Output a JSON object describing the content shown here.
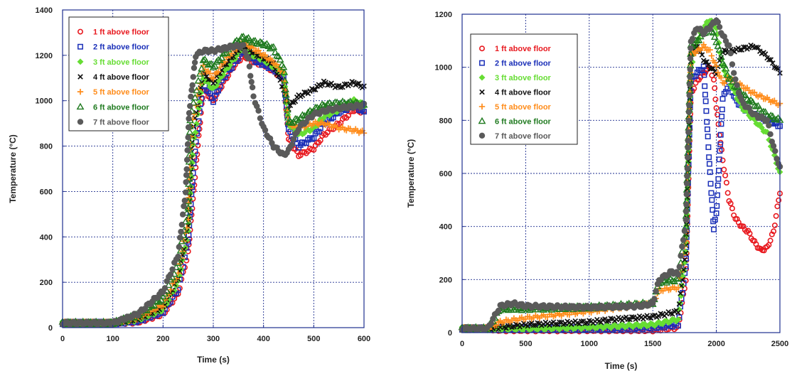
{
  "chart_data": [
    {
      "type": "scatter",
      "title": "",
      "xlabel": "Time (s)",
      "ylabel": "Temperature (°C)",
      "xlim": [
        0,
        600
      ],
      "ylim": [
        0,
        1400
      ],
      "xticks": [
        0,
        100,
        200,
        300,
        400,
        500,
        600
      ],
      "yticks": [
        0,
        200,
        400,
        600,
        800,
        1000,
        1200,
        1400
      ],
      "grid": true,
      "legend_position": "top-left",
      "series": [
        {
          "name": "1 ft above floor",
          "color": "#e8191f",
          "marker": "circle-open",
          "x": [
            0,
            100,
            150,
            200,
            230,
            250,
            265,
            280,
            300,
            320,
            340,
            360,
            380,
            400,
            420,
            440,
            450,
            470,
            500,
            520,
            550,
            580,
            600
          ],
          "y": [
            20,
            20,
            25,
            60,
            150,
            330,
            700,
            1050,
            1000,
            1080,
            1150,
            1200,
            1170,
            1160,
            1130,
            1100,
            830,
            760,
            790,
            850,
            900,
            960,
            950
          ]
        },
        {
          "name": "2 ft above floor",
          "color": "#1a2fb8",
          "marker": "square-open",
          "x": [
            0,
            100,
            150,
            200,
            230,
            250,
            262,
            280,
            300,
            320,
            340,
            360,
            380,
            400,
            420,
            440,
            450,
            470,
            500,
            520,
            550,
            580,
            600
          ],
          "y": [
            20,
            20,
            30,
            70,
            170,
            380,
            750,
            1080,
            1000,
            1100,
            1160,
            1220,
            1180,
            1160,
            1140,
            1100,
            870,
            800,
            840,
            900,
            950,
            980,
            950
          ]
        },
        {
          "name": "3 ft above floor",
          "color": "#66dd33",
          "marker": "diamond",
          "x": [
            0,
            100,
            150,
            200,
            230,
            250,
            260,
            280,
            300,
            320,
            340,
            360,
            380,
            400,
            420,
            440,
            450,
            470,
            500,
            520,
            550,
            580,
            600
          ],
          "y": [
            20,
            20,
            35,
            80,
            200,
            420,
            800,
            1100,
            1050,
            1120,
            1180,
            1240,
            1200,
            1180,
            1150,
            1120,
            900,
            850,
            880,
            930,
            960,
            1000,
            980
          ]
        },
        {
          "name": "4 ft above floor",
          "color": "#111111",
          "marker": "x",
          "x": [
            0,
            100,
            150,
            200,
            230,
            250,
            258,
            280,
            300,
            320,
            340,
            360,
            380,
            400,
            420,
            440,
            450,
            470,
            500,
            520,
            550,
            580,
            600
          ],
          "y": [
            20,
            20,
            40,
            90,
            220,
            450,
            850,
            1120,
            1080,
            1150,
            1200,
            1250,
            1210,
            1190,
            1160,
            1050,
            970,
            1020,
            1050,
            1080,
            1060,
            1080,
            1060
          ]
        },
        {
          "name": "5 ft above floor",
          "color": "#ff8c1a",
          "marker": "plus",
          "x": [
            0,
            100,
            150,
            200,
            230,
            250,
            256,
            280,
            300,
            320,
            340,
            360,
            380,
            400,
            420,
            440,
            450,
            470,
            500,
            520,
            550,
            580,
            600
          ],
          "y": [
            20,
            20,
            45,
            100,
            240,
            480,
            880,
            1150,
            1100,
            1170,
            1220,
            1260,
            1230,
            1200,
            1170,
            1120,
            900,
            880,
            900,
            900,
            880,
            870,
            860
          ]
        },
        {
          "name": "6 ft above floor",
          "color": "#1f7a1f",
          "marker": "triangle-open",
          "x": [
            0,
            100,
            150,
            200,
            230,
            250,
            254,
            280,
            300,
            320,
            340,
            360,
            380,
            400,
            420,
            440,
            450,
            470,
            500,
            520,
            550,
            580,
            600
          ],
          "y": [
            20,
            20,
            55,
            130,
            280,
            530,
            920,
            1180,
            1150,
            1200,
            1250,
            1280,
            1260,
            1250,
            1230,
            1150,
            900,
            920,
            960,
            980,
            990,
            990,
            980
          ]
        },
        {
          "name": "7 ft above floor",
          "color": "#5a5a5a",
          "marker": "circle-filled",
          "x": [
            0,
            100,
            150,
            200,
            230,
            245,
            252,
            265,
            280,
            300,
            320,
            340,
            360,
            370,
            380,
            400,
            420,
            440,
            450,
            470,
            500,
            530,
            560,
            600
          ],
          "y": [
            20,
            20,
            60,
            160,
            320,
            600,
            950,
            1200,
            1220,
            1220,
            1230,
            1240,
            1240,
            1180,
            1020,
            880,
            800,
            760,
            780,
            880,
            940,
            960,
            970,
            980
          ]
        }
      ]
    },
    {
      "type": "scatter",
      "title": "",
      "xlabel": "Time (s)",
      "ylabel": "Temperature (°C)",
      "xlim": [
        0,
        2500
      ],
      "ylim": [
        0,
        1200
      ],
      "xticks": [
        0,
        500,
        1000,
        1500,
        2000,
        2500
      ],
      "yticks": [
        0,
        200,
        400,
        600,
        800,
        1000,
        1200
      ],
      "grid": true,
      "legend_position": "top-left",
      "series": [
        {
          "name": "1 ft above floor",
          "color": "#e8191f",
          "marker": "circle-open",
          "x": [
            0,
            200,
            300,
            500,
            1000,
            1500,
            1700,
            1760,
            1800,
            1850,
            1900,
            1950,
            1980,
            2000,
            2050,
            2100,
            2150,
            2200,
            2250,
            2300,
            2350,
            2400,
            2450,
            2500
          ],
          "y": [
            15,
            15,
            10,
            10,
            10,
            10,
            20,
            200,
            900,
            950,
            980,
            1000,
            950,
            850,
            650,
            500,
            430,
            400,
            380,
            340,
            310,
            320,
            380,
            530
          ]
        },
        {
          "name": "2 ft above floor",
          "color": "#1a2fb8",
          "marker": "square-open",
          "x": [
            0,
            200,
            300,
            500,
            1000,
            1500,
            1700,
            1760,
            1800,
            1850,
            1900,
            1950,
            1980,
            2000,
            2050,
            2100,
            2150,
            2200,
            2300,
            2400,
            2500
          ],
          "y": [
            15,
            15,
            15,
            15,
            15,
            20,
            30,
            250,
            950,
            980,
            1000,
            600,
            390,
            450,
            880,
            940,
            880,
            850,
            820,
            800,
            780
          ]
        },
        {
          "name": "3 ft above floor",
          "color": "#66dd33",
          "marker": "diamond",
          "x": [
            0,
            200,
            300,
            500,
            1000,
            1500,
            1700,
            1760,
            1800,
            1850,
            1900,
            1950,
            2000,
            2050,
            2100,
            2150,
            2200,
            2300,
            2400,
            2500
          ],
          "y": [
            15,
            15,
            15,
            15,
            20,
            30,
            50,
            300,
            1000,
            1100,
            1150,
            1180,
            1150,
            1000,
            950,
            900,
            850,
            800,
            750,
            600
          ]
        },
        {
          "name": "4 ft above floor",
          "color": "#111111",
          "marker": "x",
          "x": [
            0,
            200,
            300,
            500,
            1000,
            1200,
            1500,
            1700,
            1760,
            1800,
            1850,
            1900,
            1950,
            2000,
            2050,
            2100,
            2200,
            2300,
            2400,
            2500
          ],
          "y": [
            15,
            15,
            20,
            30,
            40,
            50,
            60,
            80,
            300,
            1050,
            1080,
            1030,
            1000,
            980,
            1060,
            1060,
            1070,
            1080,
            1040,
            980
          ]
        },
        {
          "name": "5 ft above floor",
          "color": "#ff8c1a",
          "marker": "plus",
          "x": [
            0,
            200,
            300,
            500,
            1000,
            1500,
            1550,
            1700,
            1760,
            1800,
            1850,
            1900,
            1950,
            2000,
            2050,
            2100,
            2200,
            2300,
            2400,
            2500
          ],
          "y": [
            15,
            15,
            40,
            55,
            80,
            110,
            160,
            170,
            350,
            1050,
            1060,
            1080,
            1060,
            1000,
            940,
            960,
            930,
            900,
            880,
            860
          ]
        },
        {
          "name": "6 ft above floor",
          "color": "#1f7a1f",
          "marker": "triangle-open",
          "x": [
            0,
            200,
            300,
            500,
            1000,
            1500,
            1550,
            1700,
            1760,
            1800,
            1850,
            1900,
            1950,
            2000,
            2050,
            2100,
            2200,
            2300,
            2400,
            2500
          ],
          "y": [
            15,
            15,
            90,
            90,
            95,
            110,
            190,
            200,
            400,
            1080,
            1100,
            1130,
            1150,
            1100,
            1020,
            960,
            900,
            860,
            820,
            800
          ]
        },
        {
          "name": "7 ft above floor",
          "color": "#5a5a5a",
          "marker": "circle-filled",
          "x": [
            0,
            200,
            300,
            400,
            500,
            1000,
            1400,
            1500,
            1550,
            1650,
            1700,
            1760,
            1800,
            1850,
            1900,
            1950,
            2000,
            2050,
            2100,
            2150,
            2200,
            2300,
            2400,
            2450,
            2500
          ],
          "y": [
            15,
            15,
            100,
            110,
            100,
            95,
            100,
            110,
            200,
            230,
            220,
            420,
            1100,
            1150,
            1130,
            1150,
            1180,
            1120,
            1080,
            950,
            870,
            820,
            800,
            700,
            620
          ]
        }
      ]
    }
  ]
}
